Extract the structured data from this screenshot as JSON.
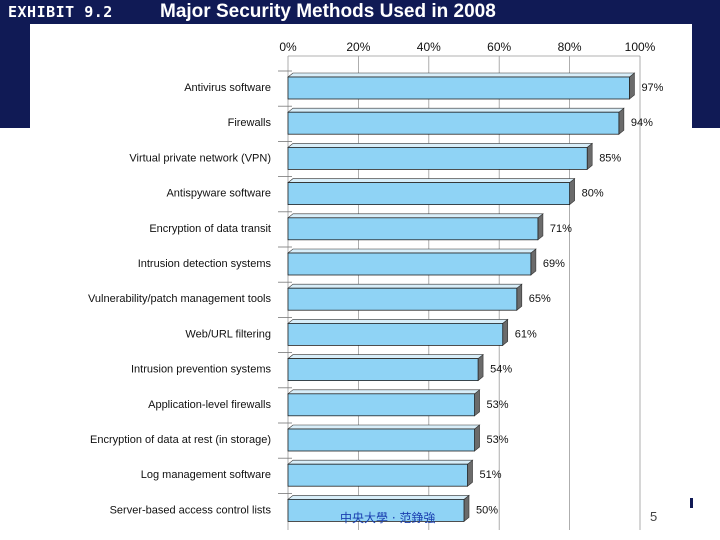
{
  "header": {
    "exhibit": "EXHIBIT 9.2",
    "title": "Major Security Methods Used in 2008"
  },
  "colors": {
    "header_bg": "#101a55",
    "bar_fill": "#8fd3f5",
    "bar_shadow": "#6b6b6b"
  },
  "chart_data": {
    "type": "bar",
    "orientation": "horizontal",
    "title": "Major Security Methods Used in 2008",
    "xlabel": "",
    "ylabel": "",
    "xlim": [
      0,
      100
    ],
    "ticks": [
      "0%",
      "20%",
      "40%",
      "60%",
      "80%",
      "100%"
    ],
    "tick_values": [
      0,
      20,
      40,
      60,
      80,
      100
    ],
    "grid": "vertical",
    "categories": [
      "Antivirus software",
      "Firewalls",
      "Virtual private network (VPN)",
      "Antispyware software",
      "Encryption of data transit",
      "Intrusion detection systems",
      "Vulnerability/patch management tools",
      "Web/URL filtering",
      "Intrusion prevention systems",
      "Application-level firewalls",
      "Encryption of data at rest (in storage)",
      "Log management software",
      "Server-based access control lists"
    ],
    "values": [
      97,
      94,
      85,
      80,
      71,
      69,
      65,
      61,
      54,
      53,
      53,
      51,
      50
    ],
    "value_labels": [
      "97%",
      "94%",
      "85%",
      "80%",
      "71%",
      "69%",
      "65%",
      "61%",
      "54%",
      "53%",
      "53%",
      "51%",
      "50%"
    ]
  },
  "footer": {
    "text": "中央大學 · 范錚強",
    "page_number": "5"
  }
}
